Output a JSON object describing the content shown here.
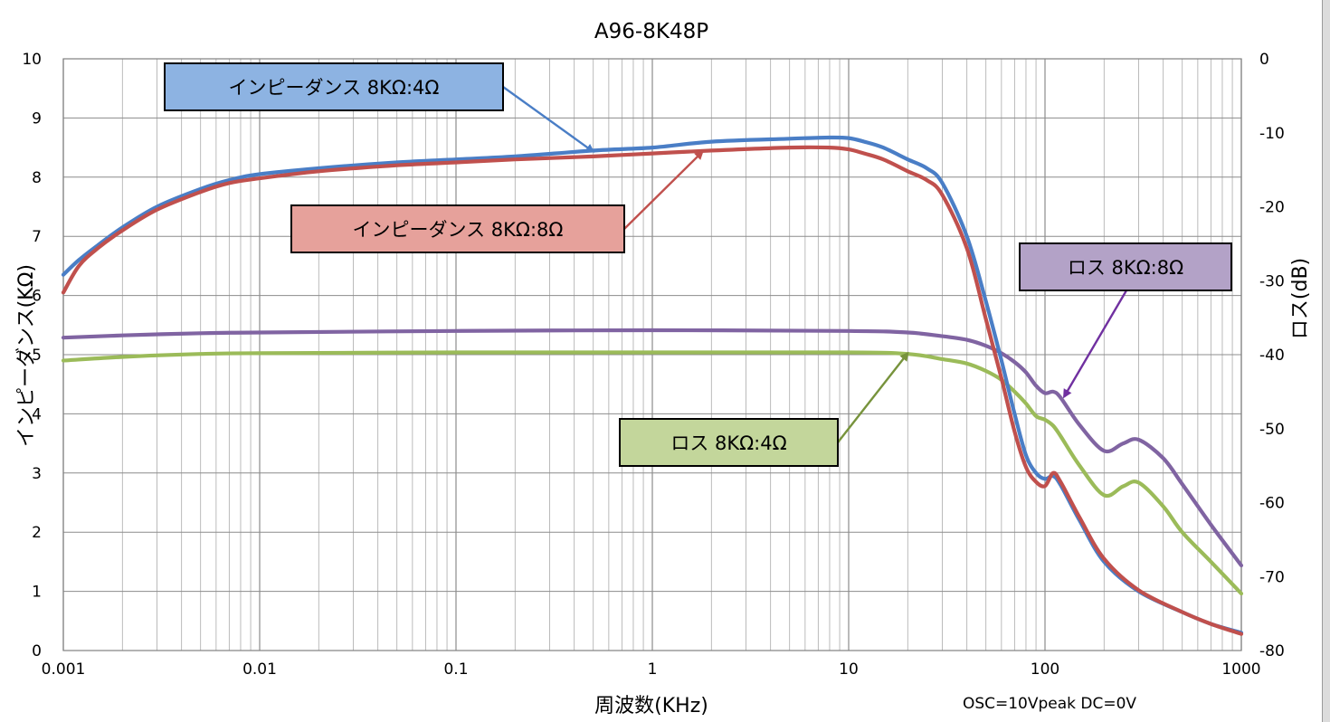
{
  "chart_data": {
    "type": "line",
    "title": "A96-8K48P",
    "xlabel": "周波数(KHz)",
    "ylabel": "インピーダンス(KΩ)",
    "y2label": "ロス(dB)",
    "x_scale": "log",
    "xlim": [
      0.001,
      1000
    ],
    "ylim": [
      0,
      10
    ],
    "y2lim": [
      -80,
      0
    ],
    "x_ticks": [
      "0.001",
      "0.01",
      "0.1",
      "1",
      "10",
      "100",
      "1000"
    ],
    "y_ticks": [
      "0",
      "1",
      "2",
      "3",
      "4",
      "5",
      "6",
      "7",
      "8",
      "9",
      "10"
    ],
    "y2_ticks": [
      "0",
      "-10",
      "-20",
      "-30",
      "-40",
      "-50",
      "-60",
      "-70",
      "-80"
    ],
    "grid": true,
    "note": "OSC=10Vpeak DC=0V",
    "colors": {
      "impedance_4": "#4a7ec6",
      "impedance_8": "#c0504d",
      "loss_8": "#8064a2",
      "loss_4": "#9bbb59"
    },
    "series": [
      {
        "name": "インピーダンス 8KΩ:4Ω",
        "axis": "left",
        "color": "#4a7ec6",
        "x": [
          0.001,
          0.0012,
          0.0015,
          0.002,
          0.003,
          0.005,
          0.007,
          0.01,
          0.02,
          0.05,
          0.1,
          0.2,
          0.5,
          1,
          2,
          5,
          8,
          10,
          12,
          15,
          20,
          25,
          30,
          40,
          50,
          60,
          70,
          80,
          90,
          100,
          110,
          120,
          150,
          200,
          300,
          500,
          700,
          1000
        ],
        "values": [
          6.35,
          6.6,
          6.85,
          7.15,
          7.5,
          7.8,
          7.95,
          8.05,
          8.15,
          8.25,
          8.3,
          8.35,
          8.45,
          8.5,
          8.6,
          8.65,
          8.67,
          8.66,
          8.6,
          8.5,
          8.3,
          8.15,
          7.9,
          7.0,
          5.9,
          4.9,
          4.0,
          3.3,
          3.0,
          2.9,
          2.95,
          2.8,
          2.2,
          1.5,
          1.0,
          0.65,
          0.45,
          0.3
        ]
      },
      {
        "name": "インピーダンス 8KΩ:8Ω",
        "axis": "left",
        "color": "#c0504d",
        "x": [
          0.001,
          0.0012,
          0.0015,
          0.002,
          0.003,
          0.005,
          0.007,
          0.01,
          0.02,
          0.05,
          0.1,
          0.2,
          0.5,
          1,
          2,
          5,
          8,
          10,
          12,
          15,
          20,
          25,
          30,
          40,
          50,
          60,
          70,
          80,
          90,
          100,
          110,
          120,
          150,
          200,
          300,
          500,
          700,
          1000
        ],
        "values": [
          6.05,
          6.5,
          6.8,
          7.1,
          7.45,
          7.75,
          7.9,
          7.98,
          8.1,
          8.2,
          8.25,
          8.3,
          8.35,
          8.4,
          8.45,
          8.5,
          8.5,
          8.47,
          8.4,
          8.3,
          8.1,
          7.95,
          7.7,
          6.8,
          5.6,
          4.6,
          3.7,
          3.1,
          2.85,
          2.78,
          3.0,
          2.85,
          2.25,
          1.55,
          1.02,
          0.65,
          0.45,
          0.28
        ]
      },
      {
        "name": "ロス 8KΩ:8Ω",
        "axis": "right",
        "color": "#8064a2",
        "x": [
          0.001,
          0.002,
          0.005,
          0.01,
          0.1,
          1,
          10,
          20,
          30,
          40,
          50,
          60,
          70,
          80,
          90,
          100,
          110,
          120,
          150,
          200,
          250,
          300,
          400,
          500,
          700,
          1000
        ],
        "values": [
          -37.7,
          -37.4,
          -37.1,
          -37.0,
          -36.8,
          -36.7,
          -36.8,
          -37.0,
          -37.5,
          -38.0,
          -38.8,
          -39.8,
          -41.0,
          -42.4,
          -44.2,
          -45.2,
          -45.0,
          -45.8,
          -49.5,
          -53.0,
          -52.0,
          -51.5,
          -54.0,
          -57.5,
          -63.0,
          -68.5
        ]
      },
      {
        "name": "ロス 8KΩ:4Ω",
        "axis": "right",
        "color": "#9bbb59",
        "x": [
          0.001,
          0.002,
          0.005,
          0.01,
          0.1,
          1,
          10,
          20,
          30,
          40,
          50,
          60,
          70,
          80,
          90,
          100,
          110,
          120,
          150,
          200,
          250,
          300,
          400,
          500,
          700,
          1000
        ],
        "values": [
          -40.8,
          -40.3,
          -39.9,
          -39.8,
          -39.7,
          -39.7,
          -39.7,
          -39.9,
          -40.6,
          -41.2,
          -42.2,
          -43.4,
          -45.0,
          -46.6,
          -48.3,
          -48.8,
          -49.6,
          -51.0,
          -55.0,
          -59.0,
          -57.8,
          -57.3,
          -60.5,
          -64.0,
          -68.0,
          -72.3
        ]
      }
    ],
    "annotations": [
      {
        "id": "imp4",
        "text": "インピーダンス 8KΩ:4Ω",
        "color": "#8db3e2",
        "point_x": 0.5,
        "point_axis": "left",
        "point_y": 8.43
      },
      {
        "id": "imp8",
        "text": "インピーダンス  8KΩ:8Ω",
        "color": "#e6a19b",
        "point_x": 1.8,
        "point_axis": "left",
        "point_y": 8.43
      },
      {
        "id": "loss8",
        "text": "ロス  8KΩ:8Ω",
        "color": "#b3a2c7",
        "point_x": 125,
        "point_axis": "right",
        "point_y": -45.7
      },
      {
        "id": "loss4",
        "text": "ロス  8KΩ:4Ω",
        "color": "#c3d69b",
        "point_x": 20,
        "point_axis": "right",
        "point_y": -39.8
      }
    ]
  }
}
